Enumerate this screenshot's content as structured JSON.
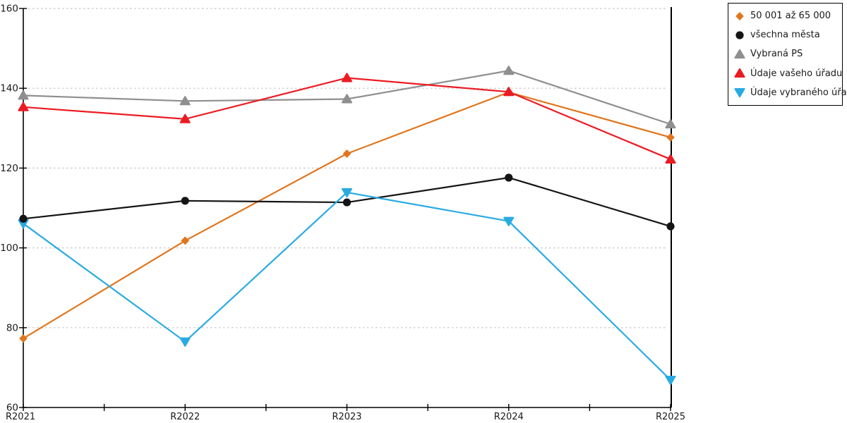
{
  "chart_data": {
    "type": "line",
    "title": "",
    "xlabel": "",
    "ylabel": "",
    "categories": [
      "R2021",
      "R2022",
      "R2023",
      "R2024",
      "R2025"
    ],
    "series": [
      {
        "name": "50 001 až 65 000",
        "marker": "diamond",
        "color": "#E0751C",
        "zorder": 1,
        "values": [
          77.3,
          101.8,
          123.6,
          139.0,
          127.7
        ]
      },
      {
        "name": "všechna města",
        "marker": "circle",
        "color": "#141414",
        "zorder": 4,
        "values": [
          107.3,
          111.8,
          111.4,
          117.6,
          105.4
        ]
      },
      {
        "name": "Vybraná PS",
        "marker": "triangle-up",
        "color": "#8F8F8F",
        "zorder": 2,
        "values": [
          138.2,
          136.8,
          137.3,
          144.4,
          131.0
        ]
      },
      {
        "name": "Údaje vašeho úřadu",
        "marker": "triangle-up",
        "color": "#EC1B23",
        "zorder": 5,
        "values": [
          135.3,
          132.3,
          142.6,
          139.1,
          122.2
        ]
      },
      {
        "name": "Údaje vybraného úřadu",
        "marker": "triangle-down",
        "color": "#29ABE2",
        "zorder": 3,
        "values": [
          106.1,
          76.5,
          113.9,
          106.7,
          66.9
        ]
      }
    ],
    "ylim": [
      60,
      160
    ],
    "yticks": [
      60,
      80,
      100,
      120,
      140,
      160
    ],
    "grid": "horizontal-dashed",
    "gridline_color": "#C3C3C3",
    "axis_color": "#000000",
    "legend_position": "top-right"
  }
}
